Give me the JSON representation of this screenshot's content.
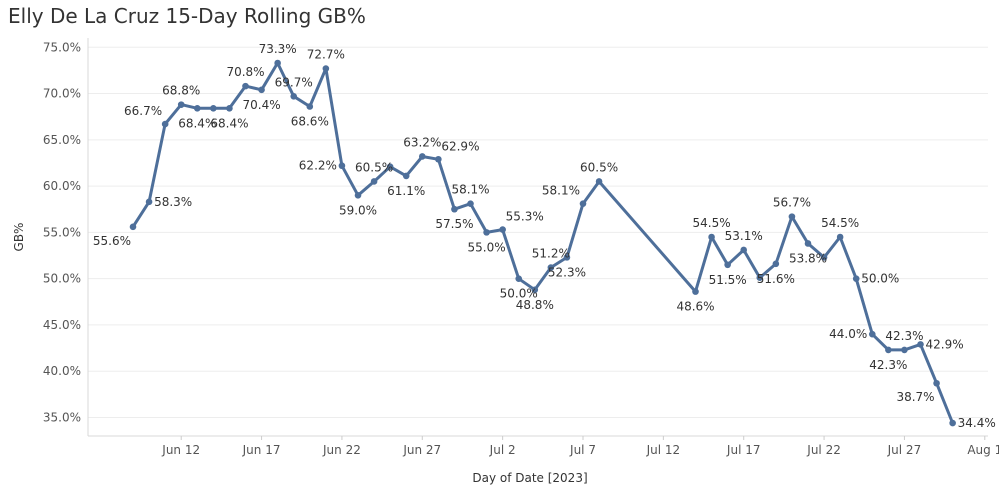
{
  "chart_data": {
    "type": "line",
    "title": "Elly De La Cruz 15-Day Rolling GB%",
    "xlabel": "Day of Date [2023]",
    "ylabel": "GB%",
    "ylim": [
      33,
      76
    ],
    "y_ticks": [
      35,
      40,
      45,
      50,
      55,
      60,
      65,
      70,
      75
    ],
    "y_tick_labels": [
      "35.0%",
      "40.0%",
      "45.0%",
      "50.0%",
      "55.0%",
      "60.0%",
      "65.0%",
      "70.0%",
      "75.0%"
    ],
    "xlim_days": [
      157.2,
      213.2
    ],
    "x_ticks": [
      {
        "day": 163,
        "label": "Jun 12"
      },
      {
        "day": 168,
        "label": "Jun 17"
      },
      {
        "day": 173,
        "label": "Jun 22"
      },
      {
        "day": 178,
        "label": "Jun 27"
      },
      {
        "day": 183,
        "label": "Jul 2"
      },
      {
        "day": 188,
        "label": "Jul 7"
      },
      {
        "day": 193,
        "label": "Jul 12"
      },
      {
        "day": 198,
        "label": "Jul 17"
      },
      {
        "day": 203,
        "label": "Jul 22"
      },
      {
        "day": 208,
        "label": "Jul 27"
      },
      {
        "day": 213,
        "label": "Aug 1"
      }
    ],
    "series": [
      {
        "name": "GB%",
        "color": "#4e6f9a",
        "points": [
          {
            "day": 160,
            "value": 55.6,
            "label": "55.6%",
            "pos": "bl"
          },
          {
            "day": 161,
            "value": 58.3,
            "label": "58.3%",
            "pos": "r"
          },
          {
            "day": 162,
            "value": 66.7,
            "label": "66.7%",
            "pos": "tl"
          },
          {
            "day": 163,
            "value": 68.8,
            "label": "68.8%",
            "pos": "t"
          },
          {
            "day": 164,
            "value": 68.4,
            "label": "68.4%",
            "pos": "b"
          },
          {
            "day": 165,
            "value": 68.4,
            "label": null,
            "pos": "none"
          },
          {
            "day": 166,
            "value": 68.4,
            "label": "68.4%",
            "pos": "b"
          },
          {
            "day": 167,
            "value": 70.8,
            "label": "70.8%",
            "pos": "t"
          },
          {
            "day": 168,
            "value": 70.4,
            "label": "70.4%",
            "pos": "b"
          },
          {
            "day": 169,
            "value": 73.3,
            "label": "73.3%",
            "pos": "t"
          },
          {
            "day": 170,
            "value": 69.7,
            "label": "69.7%",
            "pos": "t"
          },
          {
            "day": 171,
            "value": 68.6,
            "label": "68.6%",
            "pos": "b"
          },
          {
            "day": 172,
            "value": 72.7,
            "label": "72.7%",
            "pos": "t"
          },
          {
            "day": 173,
            "value": 62.2,
            "label": "62.2%",
            "pos": "l"
          },
          {
            "day": 174,
            "value": 59.0,
            "label": "59.0%",
            "pos": "b"
          },
          {
            "day": 175,
            "value": 60.5,
            "label": "60.5%",
            "pos": "t"
          },
          {
            "day": 176,
            "value": 62.1,
            "label": null,
            "pos": "none"
          },
          {
            "day": 177,
            "value": 61.1,
            "label": "61.1%",
            "pos": "b"
          },
          {
            "day": 178,
            "value": 63.2,
            "label": "63.2%",
            "pos": "t"
          },
          {
            "day": 179,
            "value": 62.9,
            "label": "62.9%",
            "pos": "tr"
          },
          {
            "day": 180,
            "value": 57.5,
            "label": "57.5%",
            "pos": "b"
          },
          {
            "day": 181,
            "value": 58.1,
            "label": "58.1%",
            "pos": "t"
          },
          {
            "day": 182,
            "value": 55.0,
            "label": "55.0%",
            "pos": "b"
          },
          {
            "day": 183,
            "value": 55.3,
            "label": "55.3%",
            "pos": "tr"
          },
          {
            "day": 184,
            "value": 50.0,
            "label": "50.0%",
            "pos": "b"
          },
          {
            "day": 185,
            "value": 48.8,
            "label": "48.8%",
            "pos": "b"
          },
          {
            "day": 186,
            "value": 51.2,
            "label": "51.2%",
            "pos": "t"
          },
          {
            "day": 187,
            "value": 52.3,
            "label": "52.3%",
            "pos": "b"
          },
          {
            "day": 188,
            "value": 58.1,
            "label": "58.1%",
            "pos": "tl"
          },
          {
            "day": 189,
            "value": 60.5,
            "label": "60.5%",
            "pos": "t"
          },
          {
            "day": 195,
            "value": 48.6,
            "label": "48.6%",
            "pos": "b"
          },
          {
            "day": 196,
            "value": 54.5,
            "label": "54.5%",
            "pos": "t"
          },
          {
            "day": 197,
            "value": 51.5,
            "label": "51.5%",
            "pos": "b"
          },
          {
            "day": 198,
            "value": 53.1,
            "label": "53.1%",
            "pos": "t"
          },
          {
            "day": 199,
            "value": 50.1,
            "label": null,
            "pos": "none"
          },
          {
            "day": 200,
            "value": 51.6,
            "label": "51.6%",
            "pos": "b"
          },
          {
            "day": 201,
            "value": 56.7,
            "label": "56.7%",
            "pos": "t"
          },
          {
            "day": 202,
            "value": 53.8,
            "label": "53.8%",
            "pos": "b"
          },
          {
            "day": 203,
            "value": 52.3,
            "label": null,
            "pos": "none"
          },
          {
            "day": 204,
            "value": 54.5,
            "label": "54.5%",
            "pos": "t"
          },
          {
            "day": 205,
            "value": 50.0,
            "label": "50.0%",
            "pos": "r"
          },
          {
            "day": 206,
            "value": 44.0,
            "label": "44.0%",
            "pos": "l"
          },
          {
            "day": 207,
            "value": 42.3,
            "label": "42.3%",
            "pos": "b"
          },
          {
            "day": 208,
            "value": 42.3,
            "label": "42.3%",
            "pos": "t"
          },
          {
            "day": 209,
            "value": 42.9,
            "label": "42.9%",
            "pos": "r"
          },
          {
            "day": 210,
            "value": 38.7,
            "label": "38.7%",
            "pos": "bl"
          },
          {
            "day": 211,
            "value": 34.4,
            "label": "34.4%",
            "pos": "r"
          }
        ]
      }
    ]
  }
}
